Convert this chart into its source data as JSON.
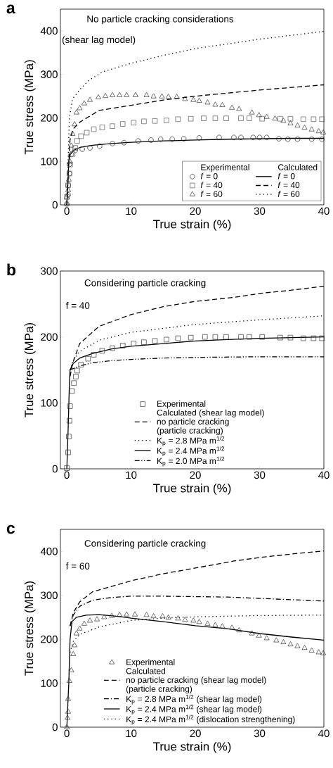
{
  "chart_data": [
    {
      "type": "line",
      "title": "a",
      "xlabel": "True strain (%)",
      "ylabel": "True stress (MPa)",
      "xlim": [
        -1,
        40
      ],
      "ylim": [
        0,
        450
      ],
      "xticks": [
        0,
        10,
        20,
        30,
        40
      ],
      "yticks": [
        0,
        100,
        200,
        300,
        400
      ],
      "legend": "bottom right",
      "annotations": [
        "No particle cracking considerations",
        "(shear lag model)",
        "Experimental",
        "Calculated"
      ],
      "series": [
        {
          "name": "*f* = 0",
          "type": "scatter",
          "marker": "circle",
          "color": "#222222",
          "x": [
            0,
            0.2,
            0.2,
            0.4,
            0.4,
            0.7,
            1.3,
            2.4,
            3.6,
            5.1,
            7.1,
            8.9,
            11.1,
            13.1,
            14.6,
            16.4,
            18.2,
            20.6,
            23.7,
            26,
            27.1,
            29,
            30,
            31.1,
            33,
            34.4,
            35.9,
            38.1,
            39.7
          ],
          "values": [
            2,
            23,
            45,
            72,
            93,
            116,
            125,
            128,
            131,
            135,
            141,
            143,
            147,
            149,
            151,
            151,
            152,
            154,
            155,
            155,
            155,
            155,
            155,
            155,
            152,
            151,
            151,
            151,
            151
          ]
        },
        {
          "name": "*f* = 40",
          "type": "scatter",
          "marker": "square",
          "color": "#555555",
          "x": [
            0,
            0.2,
            0.4,
            0.5,
            0.9,
            1.3,
            1.6,
            2.2,
            3.1,
            4.2,
            5.5,
            7.1,
            8.7,
            10.4,
            12,
            13.7,
            15.5,
            17.3,
            19.3,
            21.3,
            23.1,
            24.8,
            27.1,
            28.4,
            30.4,
            33.2,
            34.8,
            36.8,
            38.4,
            39.7
          ],
          "values": [
            18,
            45,
            72,
            93,
            117,
            131,
            147,
            158,
            166,
            174,
            178,
            181,
            186,
            189,
            192,
            193,
            194,
            197,
            198,
            199,
            199,
            199,
            199,
            199,
            198,
            198,
            198,
            197,
            197,
            197
          ]
        },
        {
          "name": "*f* = 60",
          "type": "scatter",
          "marker": "triangle",
          "color": "#333333",
          "x": [
            0,
            0,
            0.2,
            0.3,
            0.5,
            0.7,
            0.9,
            1.2,
            1.5,
            2,
            2.7,
            3.6,
            4.9,
            6,
            7.1,
            8.2,
            9.3,
            10.7,
            12.4,
            13.5,
            14.8,
            15.8,
            17.1,
            18.4,
            19.7,
            20.6,
            21.9,
            23.1,
            24.2,
            25.7,
            26.8,
            28.8,
            29.9,
            31.1,
            32.4,
            33.7,
            34.8,
            35.9,
            37,
            38.1,
            39.2,
            39.9
          ],
          "values": [
            2,
            18,
            34,
            58,
            99,
            136,
            163,
            185,
            212,
            222,
            233,
            241,
            247,
            250,
            252,
            252,
            252,
            252,
            252,
            249,
            249,
            248,
            248,
            243,
            241,
            239,
            235,
            230,
            229,
            223,
            220,
            212,
            206,
            202,
            198,
            193,
            187,
            182,
            177,
            173,
            169,
            166
          ]
        },
        {
          "name": "*f* = 0",
          "type": "line",
          "line_style": "solid",
          "color": "#000000",
          "x": [
            0,
            0.2,
            0.3,
            0.5,
            1,
            2,
            4,
            7,
            10,
            15,
            20,
            25,
            30,
            35,
            40
          ],
          "values": [
            0,
            60,
            100,
            115,
            125,
            132,
            137,
            141,
            144,
            147,
            149,
            151,
            152,
            153,
            153
          ]
        },
        {
          "name": "*f* = 40",
          "type": "line",
          "line_style": "dashed",
          "color": "#000000",
          "x": [
            0,
            0.3,
            0.5,
            1,
            2,
            5,
            10,
            15,
            20,
            25,
            30,
            35,
            40
          ],
          "values": [
            0,
            100,
            150,
            175,
            190,
            217,
            229,
            241,
            250,
            257,
            264,
            270,
            276
          ]
        },
        {
          "name": "*f* = 60",
          "type": "line",
          "line_style": "dotted",
          "color": "#000000",
          "x": [
            0,
            0.2,
            0.3,
            0.4,
            0.9,
            2.2,
            3.5,
            5.6,
            10.4,
            15.1,
            20.2,
            25,
            30,
            35,
            40
          ],
          "values": [
            0,
            100,
            158,
            201,
            244,
            268,
            287,
            306,
            327,
            344,
            360,
            370,
            381,
            390,
            399
          ]
        }
      ]
    },
    {
      "type": "line",
      "title": "b",
      "xlabel": "True strain (%)",
      "ylabel": "True stress (MPa)",
      "xlim": [
        -1,
        40
      ],
      "ylim": [
        0,
        300
      ],
      "xticks": [
        0,
        10,
        20,
        30,
        40
      ],
      "yticks": [
        0,
        100,
        200,
        300
      ],
      "legend": "bottom",
      "annotations": [
        "Considering particle cracking",
        "f = 40",
        "Calculated (shear lag model)",
        "(particle cracking)"
      ],
      "series": [
        {
          "name": "Experimental",
          "type": "scatter",
          "marker": "square",
          "color": "#333333",
          "x": [
            0,
            0.2,
            0.3,
            0.4,
            0.5,
            0.8,
            1.1,
            1.4,
            1.6,
            2.2,
            3.3,
            4.2,
            5.5,
            7.1,
            8.7,
            10.4,
            12,
            13.7,
            15.5,
            17.3,
            19.3,
            21.5,
            23.1,
            24.8,
            27.1,
            28.4,
            30.4,
            33.2,
            34.8,
            36.8,
            38.4,
            39.7
          ],
          "values": [
            1,
            25,
            49,
            73,
            95,
            118,
            130,
            140,
            149,
            158,
            167,
            173,
            179,
            183,
            187,
            190,
            192,
            194,
            196,
            198,
            199,
            200,
            200,
            200,
            200,
            200,
            200,
            199,
            199,
            198,
            198,
            198
          ]
        },
        {
          "name": "no particle cracking",
          "type": "line",
          "line_style": "dashed",
          "color": "#000000",
          "x": [
            0.5,
            0.9,
            2,
            5,
            10,
            15,
            20,
            26,
            30,
            35,
            40
          ],
          "values": [
            140,
            160,
            190,
            216,
            234,
            246,
            254,
            260,
            266,
            271,
            277
          ]
        },
        {
          "name": "K$_{p}$ = 2.8 MPa m$^{1/2}$",
          "type": "line",
          "line_style": "dotted",
          "color": "#000000",
          "x": [
            0.5,
            1,
            2,
            5,
            10,
            20,
            30,
            40
          ],
          "values": [
            150,
            165,
            178,
            195,
            207,
            219,
            226,
            232
          ]
        },
        {
          "name": "K$_{p}$ = 2.4 MPa m$^{1/2}$",
          "type": "line",
          "line_style": "solid",
          "color": "#000000",
          "x": [
            0,
            0.2,
            0.4,
            0.5,
            1,
            2,
            4,
            7,
            10,
            15,
            20,
            25,
            30,
            35,
            40
          ],
          "values": [
            0,
            60,
            130,
            150,
            160,
            168,
            175,
            182,
            186,
            190,
            194,
            196,
            198,
            199,
            200
          ]
        },
        {
          "name": "K$_{p}$ = 2.0 MPa m$^{1/2}$",
          "type": "line",
          "line_style": "dashdotdot",
          "color": "#000000",
          "x": [
            0.5,
            1,
            2,
            4,
            7,
            10,
            15,
            20,
            30,
            40
          ],
          "values": [
            150,
            152,
            156,
            161,
            164,
            166,
            168,
            169,
            170,
            170
          ]
        }
      ]
    },
    {
      "type": "line",
      "title": "c",
      "xlabel": "True strain (%)",
      "ylabel": "True stress (MPa)",
      "xlim": [
        -1,
        40
      ],
      "ylim": [
        0,
        450
      ],
      "xticks": [
        0,
        10,
        20,
        30,
        40
      ],
      "yticks": [
        0,
        100,
        200,
        300,
        400
      ],
      "legend": "bottom",
      "annotations": [
        "Considering particle cracking",
        "f = 60",
        "Calculated",
        "(particle cracking)"
      ],
      "series": [
        {
          "name": "Experimental",
          "type": "scatter",
          "marker": "triangle",
          "color": "#333333",
          "x": [
            0,
            0.1,
            0.2,
            0.2,
            0.4,
            0.7,
            1,
            1.2,
            1.5,
            2,
            2.7,
            3.6,
            4.7,
            5.8,
            7,
            8.2,
            9.3,
            10.6,
            12.4,
            13.5,
            14.9,
            15.8,
            17.3,
            18.4,
            19.7,
            20.6,
            21.9,
            23.1,
            24.2,
            25.7,
            26.8,
            28.8,
            29.9,
            31.1,
            32.6,
            33.7,
            34.8,
            35.9,
            37,
            38.1,
            39.2,
            39.9
          ],
          "values": [
            0,
            21,
            35,
            64,
            105,
            129,
            166,
            186,
            213,
            224,
            235,
            242,
            245,
            250,
            253,
            255,
            256,
            256,
            255,
            252,
            252,
            249,
            247,
            244,
            242,
            239,
            235,
            232,
            229,
            226,
            220,
            213,
            208,
            202,
            197,
            193,
            188,
            184,
            180,
            174,
            170,
            168
          ]
        },
        {
          "name": "no particle cracking (shear lag model)",
          "type": "line",
          "line_style": "dashed",
          "color": "#000000",
          "x": [
            0.5,
            1,
            2,
            4,
            10,
            15,
            20,
            26,
            30,
            35,
            40
          ],
          "values": [
            230,
            260,
            285,
            308,
            333,
            349,
            362,
            378,
            386,
            394,
            401
          ]
        },
        {
          "name": "K$_{p}$ = 2.8 MPa m$^{1/2}$ (shear lag model)",
          "type": "line",
          "line_style": "dashdot",
          "color": "#000000",
          "x": [
            0.5,
            1,
            2,
            4,
            7,
            10,
            15,
            20,
            25,
            30,
            35,
            40
          ],
          "values": [
            230,
            255,
            275,
            289,
            295,
            298,
            298,
            297,
            296,
            293,
            290,
            287
          ]
        },
        {
          "name": "K$_{p}$ = 2.4 MPa m$^{1/2}$ (shear lag model)",
          "type": "line",
          "line_style": "solid",
          "color": "#000000",
          "x": [
            0,
            0.3,
            0.5,
            0.8,
            1.5,
            3,
            5,
            8,
            10,
            15,
            20,
            25,
            30,
            35,
            40
          ],
          "values": [
            0,
            100,
            200,
            240,
            250,
            255,
            256,
            252,
            248,
            240,
            231,
            224,
            213,
            205,
            198
          ]
        },
        {
          "name": "K$_{p}$ = 2.4 MPa m$^{1/2}$ (dislocation strengthening)",
          "type": "line",
          "line_style": "dotted",
          "color": "#000000",
          "x": [
            0.5,
            1,
            2,
            5,
            10,
            15,
            20,
            30,
            40
          ],
          "values": [
            170,
            195,
            211,
            228,
            243,
            248,
            251,
            254,
            255
          ]
        }
      ]
    }
  ]
}
